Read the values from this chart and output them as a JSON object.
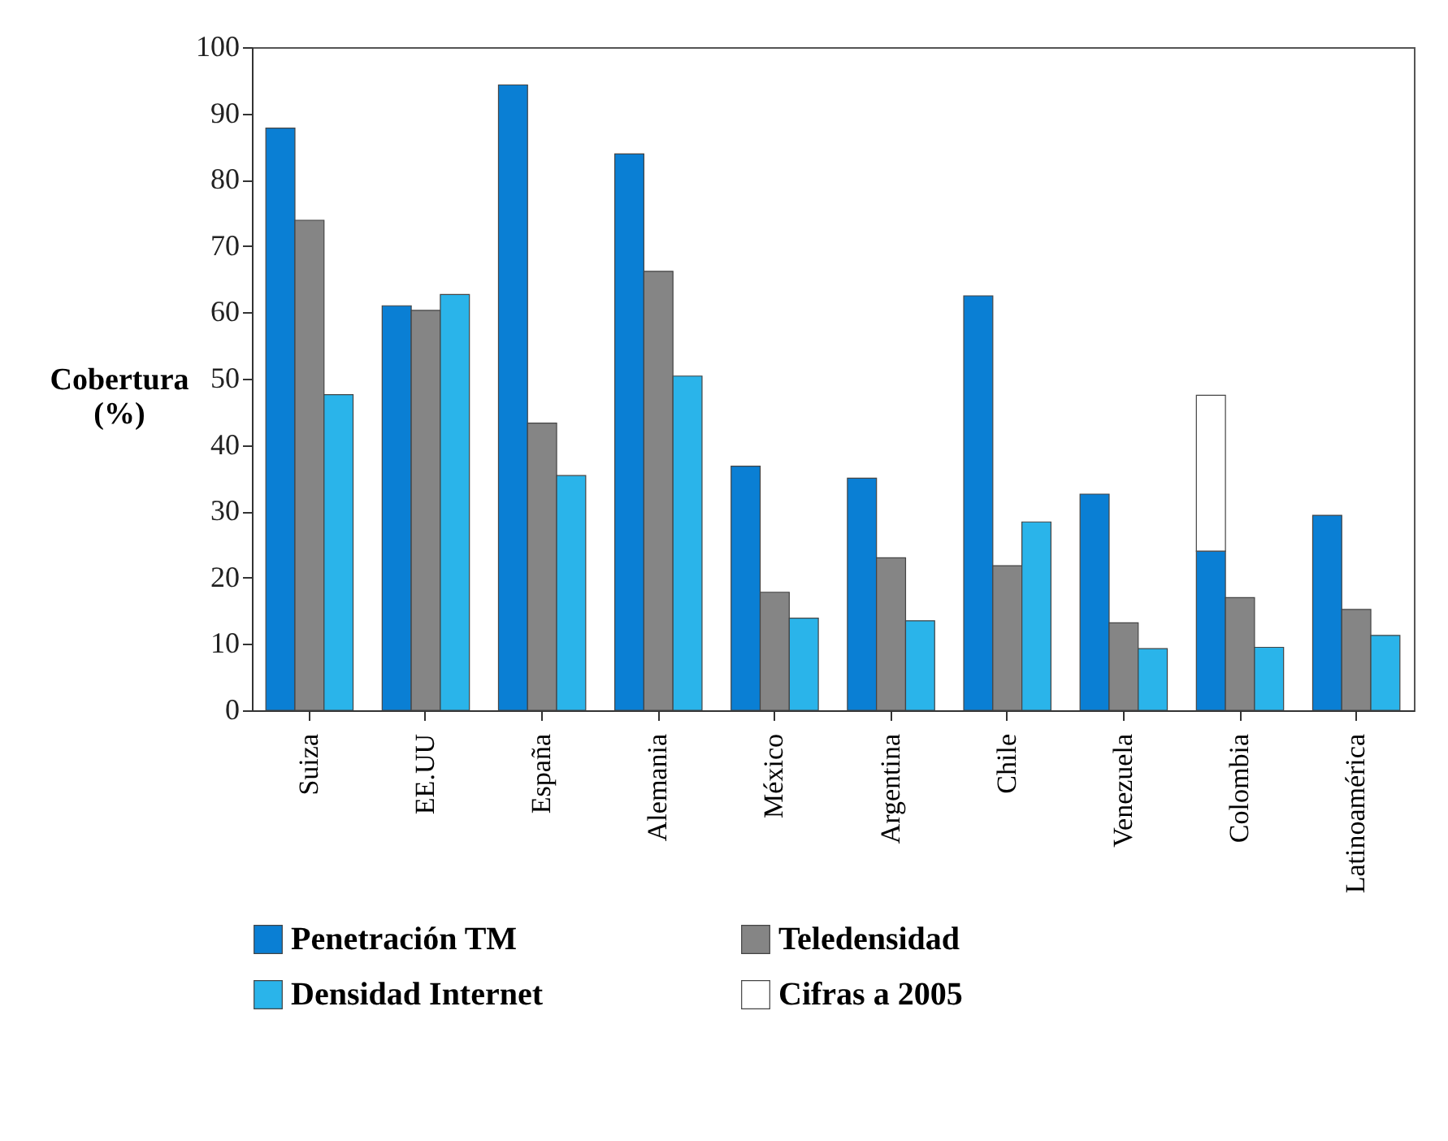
{
  "chart_data": {
    "type": "bar",
    "ylabel": "Cobertura (%)",
    "categories": [
      "Suiza",
      "EE.UU",
      "España",
      "Alemania",
      "México",
      "Argentina",
      "Chile",
      "Venezuela",
      "Colombia",
      "Latinoamérica"
    ],
    "series": [
      {
        "name": "Penetración TM",
        "color": "#0a7fd4",
        "values": [
          87.8,
          61,
          94.3,
          83.9,
          36.8,
          35,
          62.5,
          32.6,
          24,
          29.4
        ]
      },
      {
        "name": "Teledensidad",
        "color": "#858585",
        "values": [
          73.9,
          60.3,
          43.3,
          66.2,
          17.8,
          23,
          21.8,
          13.2,
          17,
          15.2
        ]
      },
      {
        "name": "Densidad Internet",
        "color": "#2ab4ea",
        "values": [
          47.6,
          62.7,
          35.4,
          50.4,
          13.9,
          13.5,
          28.4,
          9.3,
          9.5,
          11.3
        ]
      },
      {
        "name": "Cifras a 2005",
        "color": "#ffffff",
        "base": [
          null,
          null,
          null,
          null,
          null,
          null,
          null,
          null,
          24,
          null
        ],
        "values": [
          null,
          null,
          null,
          null,
          null,
          null,
          null,
          null,
          23.5,
          null
        ]
      }
    ],
    "ylim": [
      0,
      100
    ],
    "yticks": [
      0,
      10,
      20,
      30,
      40,
      50,
      60,
      70,
      80,
      90,
      100
    ],
    "grid": false,
    "legend": "bottom"
  }
}
